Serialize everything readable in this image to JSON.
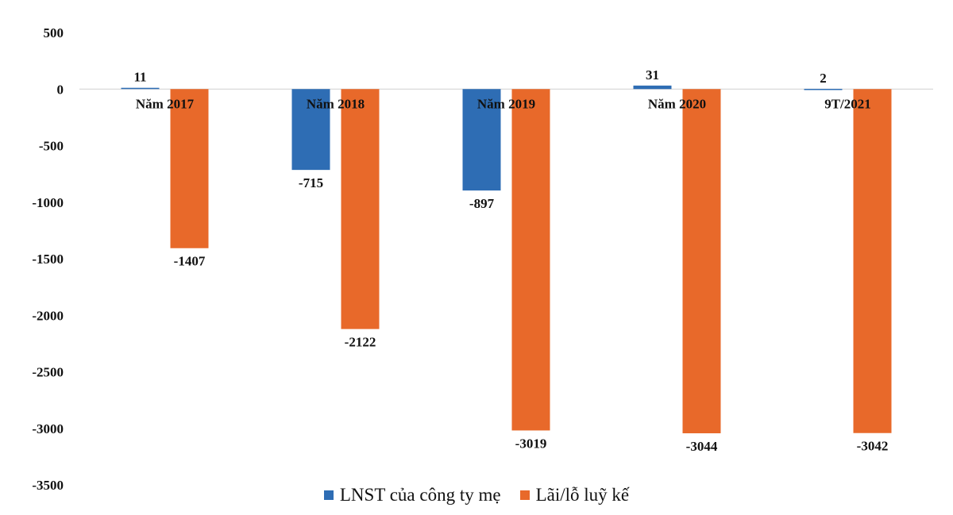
{
  "chart_data": {
    "type": "bar",
    "title": "",
    "xlabel": "",
    "ylabel": "",
    "categories": [
      "Năm 2017",
      "Năm 2018",
      "Năm 2019",
      "Năm 2020",
      "9T/2021"
    ],
    "series": [
      {
        "name": "LNST của công ty mẹ",
        "color": "#2E6DB4",
        "values": [
          11,
          -715,
          -897,
          31,
          2
        ],
        "labels": [
          "11",
          "-715",
          "-897",
          "31",
          "2"
        ]
      },
      {
        "name": "Lãi/lỗ luỹ kế",
        "color": "#E8692A",
        "values": [
          -1407,
          -2122,
          -3019,
          -3044,
          -3042
        ],
        "labels": [
          "-1407",
          "-2122",
          "-3019",
          "-3044",
          "-3042"
        ]
      }
    ],
    "ylim": [
      -3500,
      500
    ],
    "yticks": [
      500,
      0,
      -500,
      -1000,
      -1500,
      -2000,
      -2500,
      -3000,
      -3500
    ],
    "ytick_labels": [
      "500",
      "0",
      "-500",
      "-1000",
      "-1500",
      "-2000",
      "-2500",
      "-3000",
      "-3500"
    ],
    "grid": false,
    "legend_position": "bottom"
  }
}
